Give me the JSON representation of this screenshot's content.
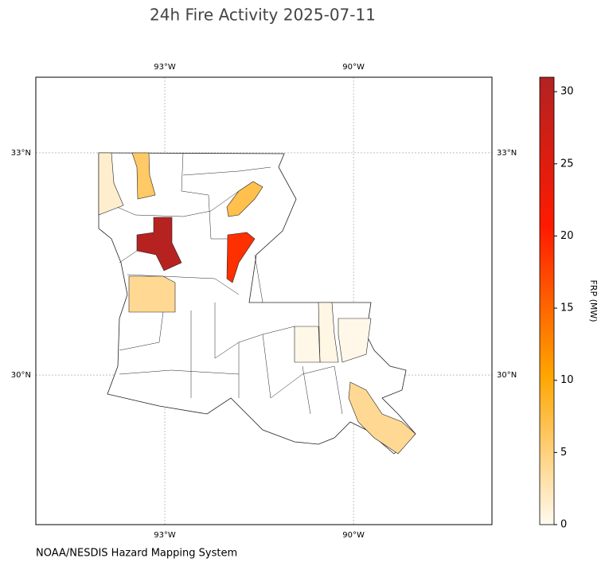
{
  "chart_data": {
    "type": "choropleth",
    "title": "24h Fire Activity 2025-07-11",
    "xlim": [
      -95.05,
      -87.8
    ],
    "ylim": [
      27.98,
      34.02
    ],
    "xticks": [
      {
        "value": -93,
        "label": "93°W"
      },
      {
        "value": -90,
        "label": "90°W"
      }
    ],
    "yticks": [
      {
        "value": 33,
        "label": "33°N"
      },
      {
        "value": 30,
        "label": "30°N"
      }
    ],
    "grid": true,
    "values": [
      1.5,
      6,
      30.5,
      7,
      4,
      19,
      0.5,
      0.3,
      0.3,
      4
    ],
    "colorbar": {
      "label": "FRP (MW)",
      "lim": [
        0,
        31
      ],
      "ticks": [
        0,
        5,
        10,
        15,
        20,
        25,
        30
      ],
      "colors": [
        "#fffaf0",
        "#ffa500",
        "#ff1a00",
        "#b22222"
      ]
    },
    "source": "NOAA/NESDIS Hazard Mapping System"
  }
}
